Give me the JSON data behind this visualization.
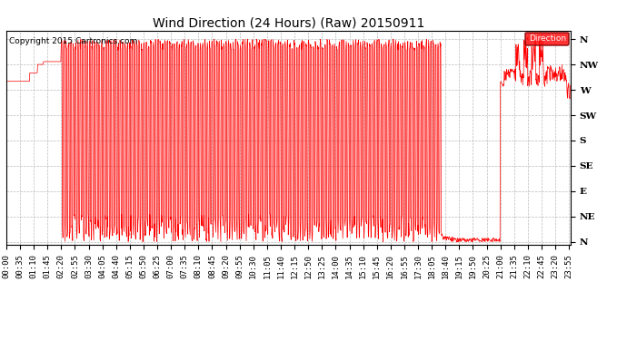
{
  "title": "Wind Direction (24 Hours) (Raw) 20150911",
  "copyright": "Copyright 2015 Cartronics.com",
  "legend_label": "Direction",
  "line_color": "#FF0000",
  "background_color": "#FFFFFF",
  "plot_bg_color": "#FFFFFF",
  "grid_color": "#AAAAAA",
  "ytick_labels": [
    "N",
    "NW",
    "W",
    "SW",
    "S",
    "SE",
    "E",
    "NE",
    "N"
  ],
  "ytick_values": [
    360,
    315,
    270,
    225,
    180,
    135,
    90,
    45,
    0
  ],
  "ylim": [
    -5,
    375
  ],
  "xlim_min": 0,
  "xlim_max": 1439,
  "xtick_interval_minutes": 35,
  "title_fontsize": 10,
  "axis_fontsize": 6.5,
  "copyright_fontsize": 6.5,
  "figwidth": 6.9,
  "figheight": 3.75,
  "dpi": 100
}
